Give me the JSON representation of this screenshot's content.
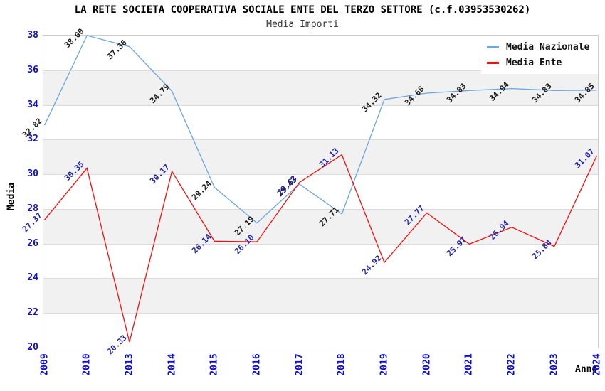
{
  "header": {
    "title": "LA RETE SOCIETA COOPERATIVA SOCIALE ENTE DEL TERZO SETTORE (c.f.03953530262)",
    "subtitle": "Media Importi"
  },
  "chart_data": {
    "type": "line",
    "title": "LA RETE SOCIETA COOPERATIVA SOCIALE ENTE DEL TERZO SETTORE (c.f.03953530262)",
    "subtitle": "Media Importi",
    "xlabel": "Anno",
    "ylabel": "Media",
    "x": [
      "2009",
      "2010",
      "2013",
      "2014",
      "2015",
      "2016",
      "2017",
      "2018",
      "2019",
      "2020",
      "2021",
      "2022",
      "2023",
      "2024"
    ],
    "ylim": [
      20,
      38
    ],
    "ytick_step": 2,
    "grid": "horizontal-only",
    "band_colors": [
      "#ffffff",
      "#f1f1f1"
    ],
    "legend_position": "top-right",
    "series": [
      {
        "name": "Media Nazionale",
        "color": "#6ca6e0",
        "label_color": "#1a1a1a",
        "values": [
          32.82,
          38.0,
          37.36,
          34.79,
          29.24,
          27.19,
          29.43,
          27.71,
          34.32,
          34.68,
          34.83,
          34.94,
          34.83,
          34.85
        ]
      },
      {
        "name": "Media Ente",
        "color": "#ee1111",
        "label_color": "#2323a8",
        "values": [
          27.37,
          30.35,
          20.33,
          30.17,
          26.14,
          26.1,
          29.53,
          31.13,
          24.92,
          27.77,
          25.97,
          26.94,
          25.84,
          31.07
        ]
      }
    ],
    "tick_label_color": "#0f0fcc",
    "value_label_format": "2-decimals"
  }
}
